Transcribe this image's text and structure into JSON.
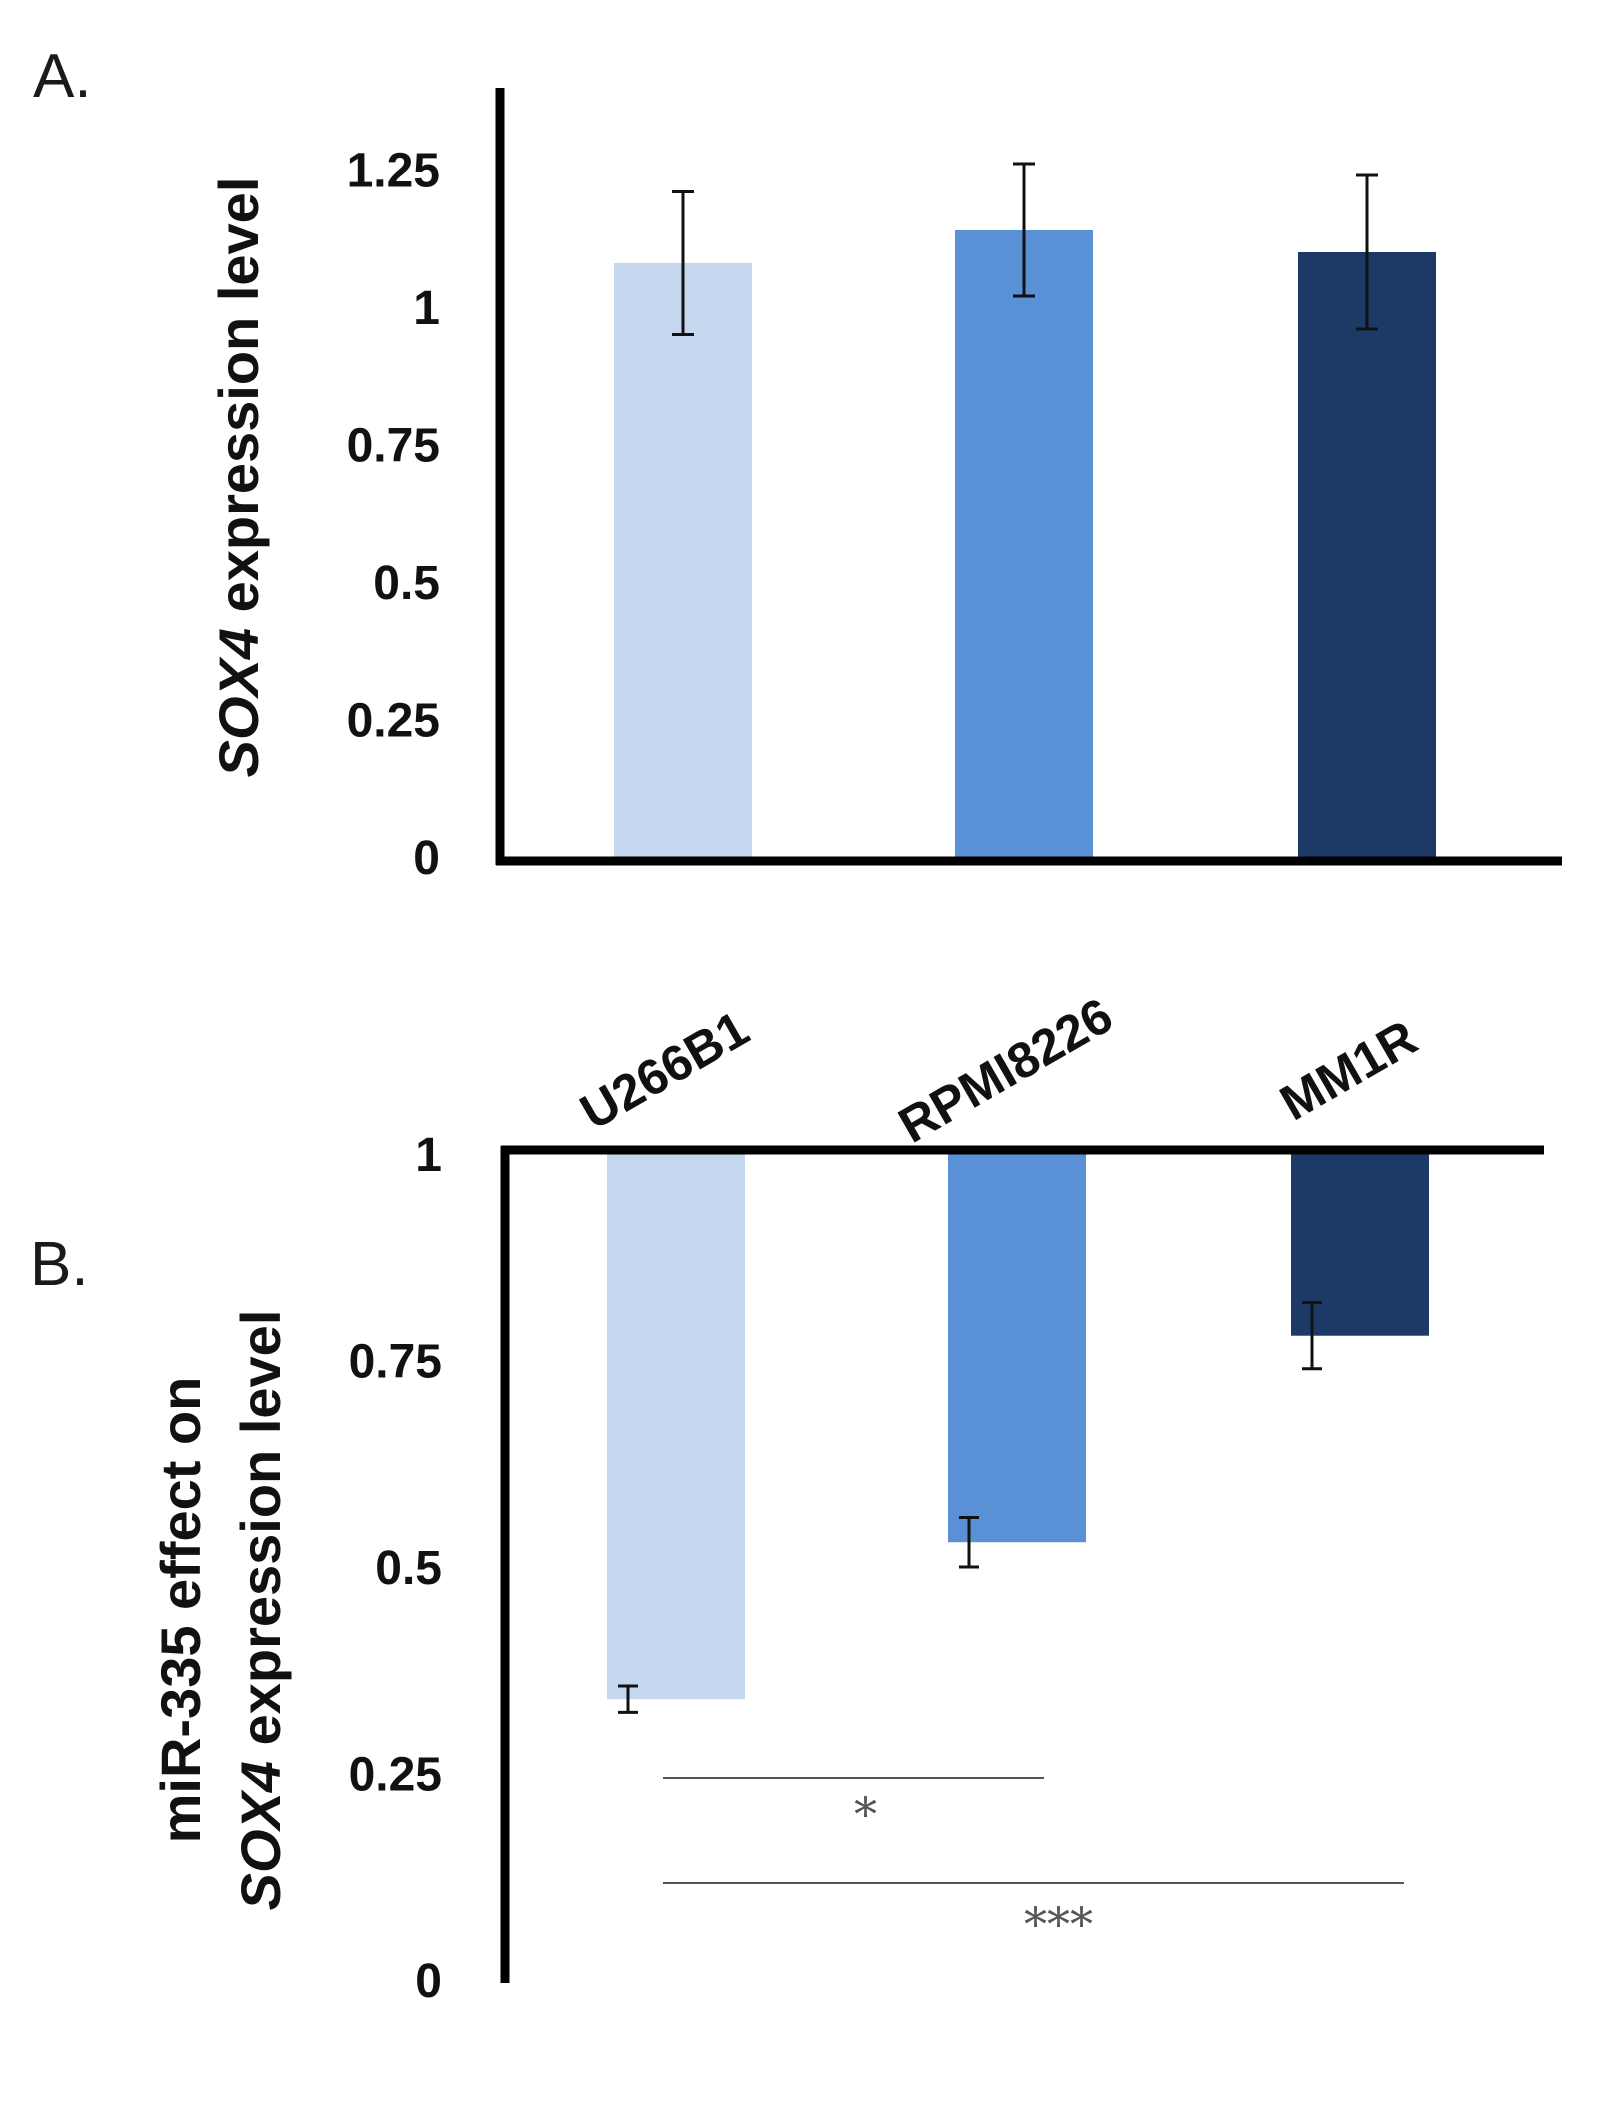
{
  "chart_data": [
    {
      "type": "bar",
      "panel_label": "A.",
      "ylabel_italic": "SOX4",
      "ylabel_rest": " expression  level",
      "categories": [
        "U266B1",
        "RPMI8226",
        "MM1R"
      ],
      "values": [
        1.08,
        1.14,
        1.1
      ],
      "errors": [
        0.13,
        0.12,
        0.14
      ],
      "colors": [
        "#c5d7ef",
        "#5990d6",
        "#1d3a66"
      ],
      "ylim": [
        0,
        1.4
      ],
      "yticks": [
        0,
        0.25,
        0.5,
        0.75,
        1,
        1.25
      ],
      "ytick_labels": [
        "0",
        "0.25",
        "0.5",
        "0.75",
        "1",
        "1.25"
      ],
      "grid": false
    },
    {
      "type": "bar",
      "panel_label": "B.",
      "ylabel_line1": "miR-335 effect on",
      "ylabel_line2_italic": "SOX4",
      "ylabel_line2_rest": " expression level",
      "categories": [
        "U266B1",
        "RPMI8226",
        "MM1R"
      ],
      "values": [
        0.34,
        0.53,
        0.78
      ],
      "errors": [
        0.016,
        0.03,
        0.04
      ],
      "colors": [
        "#c5d7ef",
        "#5990d6",
        "#1d3a66"
      ],
      "baseline": 1,
      "ylim": [
        0,
        1
      ],
      "yticks": [
        0,
        0.25,
        0.5,
        0.75,
        1
      ],
      "ytick_labels": [
        "0",
        "0.25",
        "0.5",
        "0.75",
        "1"
      ],
      "grid": false,
      "significance": [
        {
          "from": "U266B1",
          "to": "RPMI8226",
          "label": "*"
        },
        {
          "from": "U266B1",
          "to": "MM1R",
          "label": "***"
        }
      ]
    }
  ]
}
